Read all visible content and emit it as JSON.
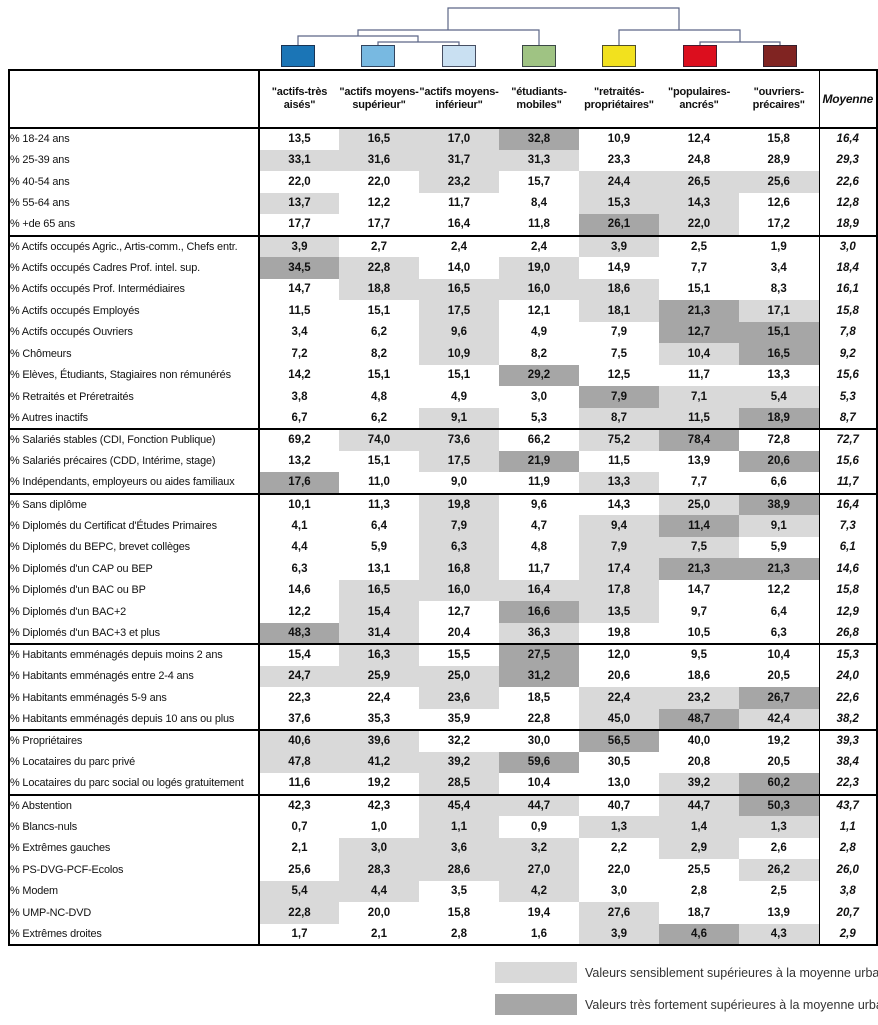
{
  "chart_data": {
    "type": "table",
    "title": "",
    "dendrogram": {
      "topology": "(((1,(2,3)),4),(5,(6,7)))",
      "line_color": "#5c6687",
      "clusters": [
        {
          "name": "actifs-très aisés",
          "color": "#1b75b6"
        },
        {
          "name": "actifs moyens-supérieur",
          "color": "#78b9e1"
        },
        {
          "name": "actifs moyens-inférieur",
          "color": "#c9e0f2"
        },
        {
          "name": "étudiants-mobiles",
          "color": "#9fc383"
        },
        {
          "name": "retraités-propriétaires",
          "color": "#f2e11e"
        },
        {
          "name": "populaires-ancrés",
          "color": "#dc0e1e"
        },
        {
          "name": "ouvriers-précaires",
          "color": "#802422"
        }
      ]
    },
    "columns": [
      "\"actifs-très aisés\"",
      "\"actifs moyens-supérieur\"",
      "\"actifs moyens-inférieur\"",
      "\"étudiants-mobiles\"",
      "\"retraités-propriétaires\"",
      "\"populaires-ancrés\"",
      "\"ouvriers-précaires\""
    ],
    "mean_label": "Moyenne",
    "shade_levels": {
      "0": "none",
      "1": "sensiblement supérieure",
      "2": "très fortement supérieure"
    },
    "highlight_colors": {
      "light": "#d9d9d9",
      "dark": "#a6a6a6"
    },
    "groups": [
      {
        "rows": [
          {
            "label": "% 18-24 ans",
            "values": [
              "13,5",
              "16,5",
              "17,0",
              "32,8",
              "10,9",
              "12,4",
              "15,8"
            ],
            "shades": [
              0,
              1,
              1,
              2,
              0,
              0,
              0
            ],
            "mean": "16,4"
          },
          {
            "label": "% 25-39 ans",
            "values": [
              "33,1",
              "31,6",
              "31,7",
              "31,3",
              "23,3",
              "24,8",
              "28,9"
            ],
            "shades": [
              1,
              1,
              1,
              1,
              0,
              0,
              0
            ],
            "mean": "29,3"
          },
          {
            "label": "% 40-54 ans",
            "values": [
              "22,0",
              "22,0",
              "23,2",
              "15,7",
              "24,4",
              "26,5",
              "25,6"
            ],
            "shades": [
              0,
              0,
              1,
              0,
              1,
              1,
              1
            ],
            "mean": "22,6"
          },
          {
            "label": "% 55-64 ans",
            "values": [
              "13,7",
              "12,2",
              "11,7",
              "8,4",
              "15,3",
              "14,3",
              "12,6"
            ],
            "shades": [
              1,
              0,
              0,
              0,
              1,
              1,
              0
            ],
            "mean": "12,8"
          },
          {
            "label": "% +de 65 ans",
            "values": [
              "17,7",
              "17,7",
              "16,4",
              "11,8",
              "26,1",
              "22,0",
              "17,2"
            ],
            "shades": [
              0,
              0,
              0,
              0,
              2,
              1,
              0
            ],
            "mean": "18,9"
          }
        ]
      },
      {
        "rows": [
          {
            "label": "% Actifs occupés Agric., Artis-comm., Chefs entr.",
            "values": [
              "3,9",
              "2,7",
              "2,4",
              "2,4",
              "3,9",
              "2,5",
              "1,9"
            ],
            "shades": [
              1,
              0,
              0,
              0,
              1,
              0,
              0
            ],
            "mean": "3,0"
          },
          {
            "label": "% Actifs occupés Cadres Prof. intel. sup.",
            "values": [
              "34,5",
              "22,8",
              "14,0",
              "19,0",
              "14,9",
              "7,7",
              "3,4"
            ],
            "shades": [
              2,
              1,
              0,
              1,
              0,
              0,
              0
            ],
            "mean": "18,4"
          },
          {
            "label": "% Actifs occupés  Prof. Intermédiaires",
            "values": [
              "14,7",
              "18,8",
              "16,5",
              "16,0",
              "18,6",
              "15,1",
              "8,3"
            ],
            "shades": [
              0,
              1,
              1,
              1,
              1,
              0,
              0
            ],
            "mean": "16,1"
          },
          {
            "label": "% Actifs occupés Employés",
            "values": [
              "11,5",
              "15,1",
              "17,5",
              "12,1",
              "18,1",
              "21,3",
              "17,1"
            ],
            "shades": [
              0,
              0,
              1,
              0,
              1,
              2,
              1
            ],
            "mean": "15,8"
          },
          {
            "label": "% Actifs occupés Ouvriers",
            "values": [
              "3,4",
              "6,2",
              "9,6",
              "4,9",
              "7,9",
              "12,7",
              "15,1"
            ],
            "shades": [
              0,
              0,
              1,
              0,
              0,
              2,
              2
            ],
            "mean": "7,8"
          },
          {
            "label": "% Chômeurs",
            "values": [
              "7,2",
              "8,2",
              "10,9",
              "8,2",
              "7,5",
              "10,4",
              "16,5"
            ],
            "shades": [
              0,
              0,
              1,
              0,
              0,
              1,
              2
            ],
            "mean": "9,2"
          },
          {
            "label": "% Elèves, Étudiants, Stagiaires non rémunérés",
            "values": [
              "14,2",
              "15,1",
              "15,1",
              "29,2",
              "12,5",
              "11,7",
              "13,3"
            ],
            "shades": [
              0,
              0,
              0,
              2,
              0,
              0,
              0
            ],
            "mean": "15,6"
          },
          {
            "label": "% Retraités et Préretraités",
            "values": [
              "3,8",
              "4,8",
              "4,9",
              "3,0",
              "7,9",
              "7,1",
              "5,4"
            ],
            "shades": [
              0,
              0,
              0,
              0,
              2,
              1,
              1
            ],
            "mean": "5,3"
          },
          {
            "label": "% Autres inactifs",
            "values": [
              "6,7",
              "6,2",
              "9,1",
              "5,3",
              "8,7",
              "11,5",
              "18,9"
            ],
            "shades": [
              0,
              0,
              1,
              0,
              1,
              1,
              2
            ],
            "mean": "8,7"
          }
        ]
      },
      {
        "rows": [
          {
            "label": "% Salariés stables (CDI, Fonction Publique)",
            "values": [
              "69,2",
              "74,0",
              "73,6",
              "66,2",
              "75,2",
              "78,4",
              "72,8"
            ],
            "shades": [
              0,
              1,
              1,
              0,
              1,
              2,
              0
            ],
            "mean": "72,7"
          },
          {
            "label": "% Salariés précaires (CDD, Intérime, stage)",
            "values": [
              "13,2",
              "15,1",
              "17,5",
              "21,9",
              "11,5",
              "13,9",
              "20,6"
            ],
            "shades": [
              0,
              0,
              1,
              2,
              0,
              0,
              2
            ],
            "mean": "15,6"
          },
          {
            "label": "% Indépendants, employeurs ou aides familiaux",
            "values": [
              "17,6",
              "11,0",
              "9,0",
              "11,9",
              "13,3",
              "7,7",
              "6,6"
            ],
            "shades": [
              2,
              0,
              0,
              0,
              1,
              0,
              0
            ],
            "mean": "11,7"
          }
        ]
      },
      {
        "rows": [
          {
            "label": "% Sans diplôme",
            "values": [
              "10,1",
              "11,3",
              "19,8",
              "9,6",
              "14,3",
              "25,0",
              "38,9"
            ],
            "shades": [
              0,
              0,
              1,
              0,
              0,
              1,
              2
            ],
            "mean": "16,4"
          },
          {
            "label": "% Diplomés du Certificat d'Études Primaires",
            "values": [
              "4,1",
              "6,4",
              "7,9",
              "4,7",
              "9,4",
              "11,4",
              "9,1"
            ],
            "shades": [
              0,
              0,
              1,
              0,
              1,
              2,
              1
            ],
            "mean": "7,3"
          },
          {
            "label": "% Diplomés du BEPC, brevet collèges",
            "values": [
              "4,4",
              "5,9",
              "6,3",
              "4,8",
              "7,9",
              "7,5",
              "5,9"
            ],
            "shades": [
              0,
              0,
              1,
              0,
              1,
              1,
              0
            ],
            "mean": "6,1"
          },
          {
            "label": "% Diplomés d'un CAP ou BEP",
            "values": [
              "6,3",
              "13,1",
              "16,8",
              "11,7",
              "17,4",
              "21,3",
              "21,3"
            ],
            "shades": [
              0,
              0,
              1,
              0,
              1,
              2,
              2
            ],
            "mean": "14,6"
          },
          {
            "label": "% Diplomés d'un BAC ou BP",
            "values": [
              "14,6",
              "16,5",
              "16,0",
              "16,4",
              "17,8",
              "14,7",
              "12,2"
            ],
            "shades": [
              0,
              1,
              1,
              1,
              1,
              0,
              0
            ],
            "mean": "15,8"
          },
          {
            "label": "% Diplomés d'un BAC+2",
            "values": [
              "12,2",
              "15,4",
              "12,7",
              "16,6",
              "13,5",
              "9,7",
              "6,4"
            ],
            "shades": [
              0,
              1,
              0,
              2,
              1,
              0,
              0
            ],
            "mean": "12,9"
          },
          {
            "label": "% Diplomés d'un BAC+3 et plus",
            "values": [
              "48,3",
              "31,4",
              "20,4",
              "36,3",
              "19,8",
              "10,5",
              "6,3"
            ],
            "shades": [
              2,
              1,
              0,
              1,
              0,
              0,
              0
            ],
            "mean": "26,8"
          }
        ]
      },
      {
        "rows": [
          {
            "label": "% Habitants emménagés depuis moins 2 ans",
            "values": [
              "15,4",
              "16,3",
              "15,5",
              "27,5",
              "12,0",
              "9,5",
              "10,4"
            ],
            "shades": [
              0,
              1,
              0,
              2,
              0,
              0,
              0
            ],
            "mean": "15,3"
          },
          {
            "label": "% Habitants emménagés entre 2-4 ans",
            "values": [
              "24,7",
              "25,9",
              "25,0",
              "31,2",
              "20,6",
              "18,6",
              "20,5"
            ],
            "shades": [
              1,
              1,
              1,
              2,
              0,
              0,
              0
            ],
            "mean": "24,0"
          },
          {
            "label": "% Habitants emménagés 5-9 ans",
            "values": [
              "22,3",
              "22,4",
              "23,6",
              "18,5",
              "22,4",
              "23,2",
              "26,7"
            ],
            "shades": [
              0,
              0,
              1,
              0,
              1,
              1,
              2
            ],
            "mean": "22,6"
          },
          {
            "label": "% Habitants emménagés depuis 10 ans ou plus",
            "values": [
              "37,6",
              "35,3",
              "35,9",
              "22,8",
              "45,0",
              "48,7",
              "42,4"
            ],
            "shades": [
              0,
              0,
              0,
              0,
              1,
              2,
              1
            ],
            "mean": "38,2"
          }
        ]
      },
      {
        "rows": [
          {
            "label": "% Propriétaires",
            "values": [
              "40,6",
              "39,6",
              "32,2",
              "30,0",
              "56,5",
              "40,0",
              "19,2"
            ],
            "shades": [
              1,
              1,
              0,
              0,
              2,
              0,
              0
            ],
            "mean": "39,3"
          },
          {
            "label": "% Locataires du parc privé",
            "values": [
              "47,8",
              "41,2",
              "39,2",
              "59,6",
              "30,5",
              "20,8",
              "20,5"
            ],
            "shades": [
              1,
              1,
              1,
              2,
              0,
              0,
              0
            ],
            "mean": "38,4"
          },
          {
            "label": "% Locataires du parc social ou logés gratuitement",
            "values": [
              "11,6",
              "19,2",
              "28,5",
              "10,4",
              "13,0",
              "39,2",
              "60,2"
            ],
            "shades": [
              0,
              0,
              1,
              0,
              0,
              1,
              2
            ],
            "mean": "22,3"
          }
        ]
      },
      {
        "rows": [
          {
            "label": "% Abstention",
            "values": [
              "42,3",
              "42,3",
              "45,4",
              "44,7",
              "40,7",
              "44,7",
              "50,3"
            ],
            "shades": [
              0,
              0,
              1,
              1,
              0,
              1,
              2
            ],
            "mean": "43,7"
          },
          {
            "label": "% Blancs-nuls",
            "values": [
              "0,7",
              "1,0",
              "1,1",
              "0,9",
              "1,3",
              "1,4",
              "1,3"
            ],
            "shades": [
              0,
              0,
              1,
              0,
              1,
              1,
              1
            ],
            "mean": "1,1"
          },
          {
            "label": "% Extrêmes gauches",
            "values": [
              "2,1",
              "3,0",
              "3,6",
              "3,2",
              "2,2",
              "2,9",
              "2,6"
            ],
            "shades": [
              0,
              1,
              1,
              1,
              0,
              1,
              0
            ],
            "mean": "2,8"
          },
          {
            "label": "% PS-DVG-PCF-Ecolos",
            "values": [
              "25,6",
              "28,3",
              "28,6",
              "27,0",
              "22,0",
              "25,5",
              "26,2"
            ],
            "shades": [
              0,
              1,
              1,
              1,
              0,
              0,
              1
            ],
            "mean": "26,0"
          },
          {
            "label": "% Modem",
            "values": [
              "5,4",
              "4,4",
              "3,5",
              "4,2",
              "3,0",
              "2,8",
              "2,5"
            ],
            "shades": [
              1,
              1,
              0,
              1,
              0,
              0,
              0
            ],
            "mean": "3,8"
          },
          {
            "label": "% UMP-NC-DVD",
            "values": [
              "22,8",
              "20,0",
              "15,8",
              "19,4",
              "27,6",
              "18,7",
              "13,9"
            ],
            "shades": [
              1,
              0,
              0,
              0,
              1,
              0,
              0
            ],
            "mean": "20,7"
          },
          {
            "label": "% Extrêmes droites",
            "values": [
              "1,7",
              "2,1",
              "2,8",
              "1,6",
              "3,9",
              "4,6",
              "4,3"
            ],
            "shades": [
              0,
              0,
              0,
              0,
              1,
              2,
              1
            ],
            "mean": "2,9"
          }
        ]
      }
    ],
    "legend": [
      {
        "level": "light",
        "label": "Valeurs sensiblement supérieures à la moyenne urbaine"
      },
      {
        "level": "dark",
        "label": "Valeurs très fortement supérieures à la moyenne urbaine"
      }
    ]
  }
}
